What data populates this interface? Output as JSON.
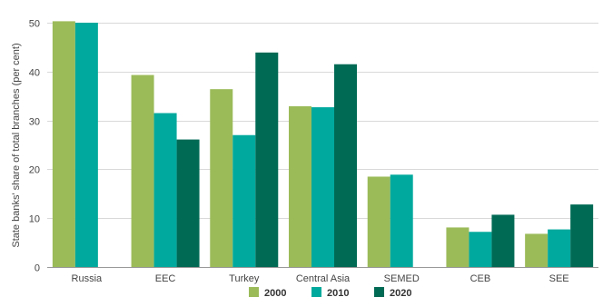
{
  "chart_data": {
    "type": "bar",
    "ylabel": "State banks' share of total branches (per cent)",
    "ylim": [
      0,
      50
    ],
    "yticks": [
      0,
      10,
      20,
      30,
      40,
      50
    ],
    "grid": true,
    "legend_position": "bottom",
    "categories": [
      "Russia",
      "EEC",
      "Turkey",
      "Central Asia",
      "SEMED",
      "CEB",
      "SEE"
    ],
    "series": [
      {
        "name": "2000",
        "color": "#9bbb59",
        "values": [
          50.3,
          39.3,
          36.4,
          32.9,
          18.5,
          8.1,
          6.8
        ]
      },
      {
        "name": "2010",
        "color": "#00a99d",
        "values": [
          50.0,
          31.5,
          27.0,
          32.7,
          18.9,
          7.2,
          7.7
        ]
      },
      {
        "name": "2020",
        "color": "#006a55",
        "values": [
          null,
          26.1,
          43.9,
          41.5,
          null,
          10.7,
          12.8
        ]
      }
    ]
  }
}
